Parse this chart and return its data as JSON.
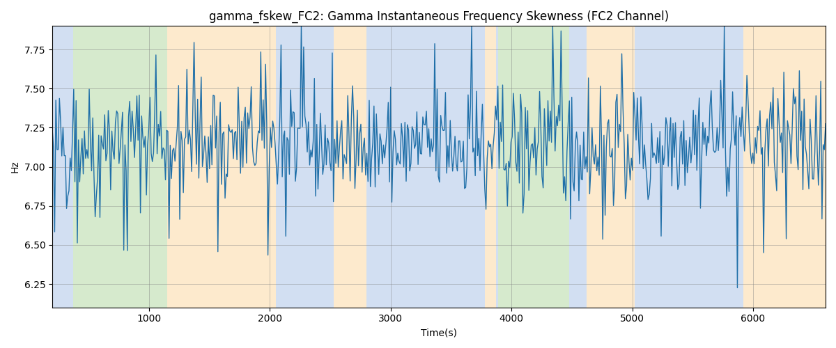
{
  "title": "gamma_fskew_FC2: Gamma Instantaneous Frequency Skewness (FC2 Channel)",
  "xlabel": "Time(s)",
  "ylabel": "Hz",
  "xlim": [
    200,
    6600
  ],
  "ylim": [
    6.1,
    7.9
  ],
  "yticks": [
    6.25,
    6.5,
    6.75,
    7.0,
    7.25,
    7.5,
    7.75
  ],
  "xticks": [
    1000,
    2000,
    3000,
    4000,
    5000,
    6000
  ],
  "line_color": "#1f6fa8",
  "line_width": 1.0,
  "background_regions": [
    {
      "xmin": 200,
      "xmax": 370,
      "color": "#aec6e8",
      "alpha": 0.55
    },
    {
      "xmin": 370,
      "xmax": 1150,
      "color": "#b5d9a5",
      "alpha": 0.55
    },
    {
      "xmin": 1150,
      "xmax": 2050,
      "color": "#fdd9a5",
      "alpha": 0.55
    },
    {
      "xmin": 2050,
      "xmax": 2530,
      "color": "#aec6e8",
      "alpha": 0.55
    },
    {
      "xmin": 2530,
      "xmax": 2800,
      "color": "#fdd9a5",
      "alpha": 0.55
    },
    {
      "xmin": 2800,
      "xmax": 3780,
      "color": "#aec6e8",
      "alpha": 0.55
    },
    {
      "xmin": 3780,
      "xmax": 3870,
      "color": "#fdd9a5",
      "alpha": 0.55
    },
    {
      "xmin": 3870,
      "xmax": 3890,
      "color": "#aec6e8",
      "alpha": 0.55
    },
    {
      "xmin": 3890,
      "xmax": 4480,
      "color": "#b5d9a5",
      "alpha": 0.55
    },
    {
      "xmin": 4480,
      "xmax": 4620,
      "color": "#aec6e8",
      "alpha": 0.55
    },
    {
      "xmin": 4620,
      "xmax": 5020,
      "color": "#fdd9a5",
      "alpha": 0.55
    },
    {
      "xmin": 5020,
      "xmax": 5920,
      "color": "#aec6e8",
      "alpha": 0.55
    },
    {
      "xmin": 5920,
      "xmax": 6600,
      "color": "#fdd9a5",
      "alpha": 0.55
    }
  ],
  "seed": 42,
  "n_points": 650
}
